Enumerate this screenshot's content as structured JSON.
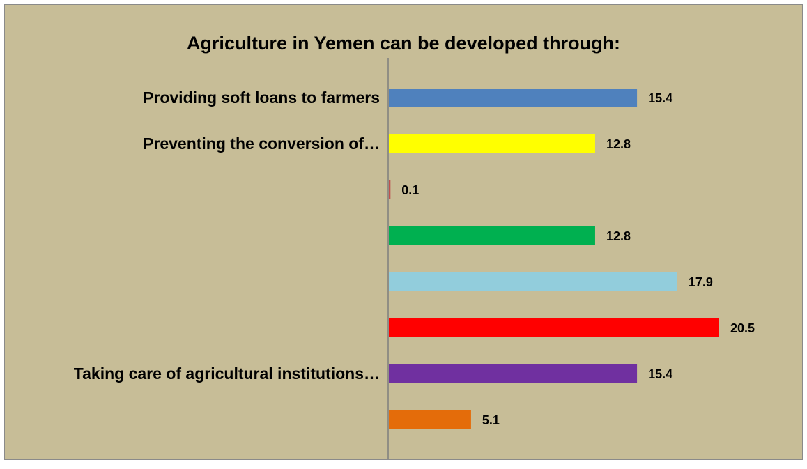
{
  "chart_data": {
    "type": "bar",
    "orientation": "horizontal",
    "title": "Agriculture in Yemen can be developed through:",
    "xlabel": "",
    "ylabel": "",
    "xlim": [
      0,
      20.5
    ],
    "grid": false,
    "legend": "none",
    "categories": [
      "Providing soft loans to farmers",
      "Preventing the conversion of…",
      "",
      "",
      "",
      "",
      "Taking care of agricultural institutions…",
      ""
    ],
    "values": [
      15.4,
      12.8,
      0.1,
      12.8,
      17.9,
      20.5,
      15.4,
      5.1
    ],
    "value_labels": [
      "15.4",
      "12.8",
      "0.1",
      "12.8",
      "17.9",
      "20.5",
      "15.4",
      "5.1"
    ],
    "colors": [
      "#4f81bd",
      "#ffff00",
      "#c0504d",
      "#00b050",
      "#92cddc",
      "#ff0000",
      "#7030a0",
      "#e46c0a"
    ]
  },
  "colors": {
    "background": "#c7bd97",
    "axis": "#7f7f7f"
  }
}
